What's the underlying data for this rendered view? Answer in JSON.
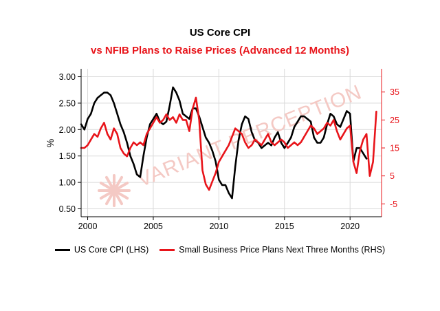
{
  "titles": {
    "main": "US Core CPI",
    "sub": "vs NFIB Plans to Raise Prices (Advanced 12 Months)"
  },
  "watermark": "VARIANT PERCEPTION",
  "colors": {
    "lhs_series": "#000000",
    "rhs_series": "#e8141a",
    "grid": "#d9d9d9",
    "watermark": "#f4c9c4"
  },
  "chart_data": {
    "type": "line",
    "grid": true,
    "legend_position": "bottom",
    "xlim": [
      1999.5,
      2022.4
    ],
    "x_ticks": [
      2000,
      2005,
      2010,
      2015,
      2020
    ],
    "y_left": {
      "label": "%",
      "ylim": [
        0.35,
        3.15
      ],
      "ticks": [
        0.5,
        1.0,
        1.5,
        2.0,
        2.5,
        3.0
      ],
      "tick_labels": [
        "0.50",
        "1.00",
        "1.50",
        "2.00",
        "2.50",
        "3.00"
      ]
    },
    "y_right": {
      "label": "",
      "ylim": [
        -9.6,
        43.3
      ],
      "ticks": [
        -5,
        5,
        15,
        25,
        35
      ],
      "tick_labels": [
        "-5",
        "5",
        "15",
        "25",
        "35"
      ]
    },
    "series": [
      {
        "name": "US Core CPI (LHS)",
        "axis": "left",
        "x": [
          1999.5,
          1999.75,
          2000.0,
          2000.25,
          2000.5,
          2000.75,
          2001.0,
          2001.25,
          2001.5,
          2001.75,
          2002.0,
          2002.25,
          2002.5,
          2002.75,
          2003.0,
          2003.25,
          2003.5,
          2003.75,
          2004.0,
          2004.25,
          2004.5,
          2004.75,
          2005.0,
          2005.25,
          2005.5,
          2005.75,
          2006.0,
          2006.25,
          2006.5,
          2006.75,
          2007.0,
          2007.25,
          2007.5,
          2007.75,
          2008.0,
          2008.25,
          2008.5,
          2008.75,
          2009.0,
          2009.25,
          2009.5,
          2009.75,
          2010.0,
          2010.25,
          2010.5,
          2010.75,
          2011.0,
          2011.25,
          2011.5,
          2011.75,
          2012.0,
          2012.25,
          2012.5,
          2012.75,
          2013.0,
          2013.25,
          2013.5,
          2013.75,
          2014.0,
          2014.25,
          2014.5,
          2014.75,
          2015.0,
          2015.25,
          2015.5,
          2015.75,
          2016.0,
          2016.25,
          2016.5,
          2016.75,
          2017.0,
          2017.25,
          2017.5,
          2017.75,
          2018.0,
          2018.25,
          2018.5,
          2018.75,
          2019.0,
          2019.25,
          2019.5,
          2019.75,
          2020.0,
          2020.25,
          2020.5,
          2020.75,
          2021.0,
          2021.25
        ],
        "values": [
          2.1,
          2.0,
          2.2,
          2.3,
          2.5,
          2.6,
          2.65,
          2.7,
          2.7,
          2.65,
          2.5,
          2.3,
          2.1,
          1.95,
          1.75,
          1.5,
          1.35,
          1.15,
          1.1,
          1.5,
          1.85,
          2.1,
          2.2,
          2.3,
          2.15,
          2.1,
          2.15,
          2.45,
          2.8,
          2.7,
          2.55,
          2.3,
          2.25,
          2.2,
          2.4,
          2.4,
          2.25,
          2.05,
          1.85,
          1.75,
          1.6,
          1.4,
          1.05,
          0.95,
          0.95,
          0.8,
          0.7,
          1.3,
          1.8,
          2.1,
          2.25,
          2.2,
          1.95,
          1.8,
          1.75,
          1.65,
          1.7,
          1.75,
          1.7,
          1.85,
          1.95,
          1.75,
          1.65,
          1.75,
          1.85,
          2.05,
          2.15,
          2.25,
          2.25,
          2.2,
          2.15,
          1.85,
          1.75,
          1.75,
          1.85,
          2.1,
          2.3,
          2.25,
          2.1,
          2.05,
          2.2,
          2.35,
          2.3,
          1.4,
          1.65,
          1.65,
          1.55,
          1.45
        ]
      },
      {
        "name": "Small Business Price Plans Next Three Months (RHS)",
        "axis": "right",
        "x": [
          1999.5,
          1999.75,
          2000.0,
          2000.25,
          2000.5,
          2000.75,
          2001.0,
          2001.25,
          2001.5,
          2001.75,
          2002.0,
          2002.25,
          2002.5,
          2002.75,
          2003.0,
          2003.25,
          2003.5,
          2003.75,
          2004.0,
          2004.25,
          2004.5,
          2004.75,
          2005.0,
          2005.25,
          2005.5,
          2005.75,
          2006.0,
          2006.25,
          2006.5,
          2006.75,
          2007.0,
          2007.25,
          2007.5,
          2007.75,
          2008.0,
          2008.25,
          2008.5,
          2008.75,
          2009.0,
          2009.25,
          2009.5,
          2009.75,
          2010.0,
          2010.25,
          2010.5,
          2010.75,
          2011.0,
          2011.25,
          2011.5,
          2011.75,
          2012.0,
          2012.25,
          2012.5,
          2012.75,
          2013.0,
          2013.25,
          2013.5,
          2013.75,
          2014.0,
          2014.25,
          2014.5,
          2014.75,
          2015.0,
          2015.25,
          2015.5,
          2015.75,
          2016.0,
          2016.25,
          2016.5,
          2016.75,
          2017.0,
          2017.25,
          2017.5,
          2017.75,
          2018.0,
          2018.25,
          2018.5,
          2018.75,
          2019.0,
          2019.25,
          2019.5,
          2019.75,
          2020.0,
          2020.25,
          2020.5,
          2020.75,
          2021.0,
          2021.25,
          2021.5,
          2021.75,
          2022.0
        ],
        "values": [
          15,
          15,
          16,
          18,
          20,
          19,
          22,
          24,
          20,
          18,
          22,
          20,
          15,
          13,
          12,
          15,
          17,
          16,
          17,
          16,
          20,
          22,
          24,
          26,
          24,
          25,
          27,
          25,
          26,
          24,
          27,
          25,
          25,
          21,
          29,
          33,
          25,
          7,
          2,
          0,
          3,
          6,
          10,
          12,
          14,
          16,
          19,
          22,
          21,
          20,
          17,
          15,
          16,
          18,
          17,
          16,
          18,
          20,
          17,
          16,
          17,
          18,
          17,
          15,
          16,
          17,
          16,
          17,
          19,
          21,
          23,
          22,
          20,
          21,
          22,
          24,
          23,
          25,
          21,
          18,
          20,
          22,
          23,
          10,
          6,
          14,
          18,
          20,
          5,
          10,
          28
        ]
      }
    ]
  }
}
